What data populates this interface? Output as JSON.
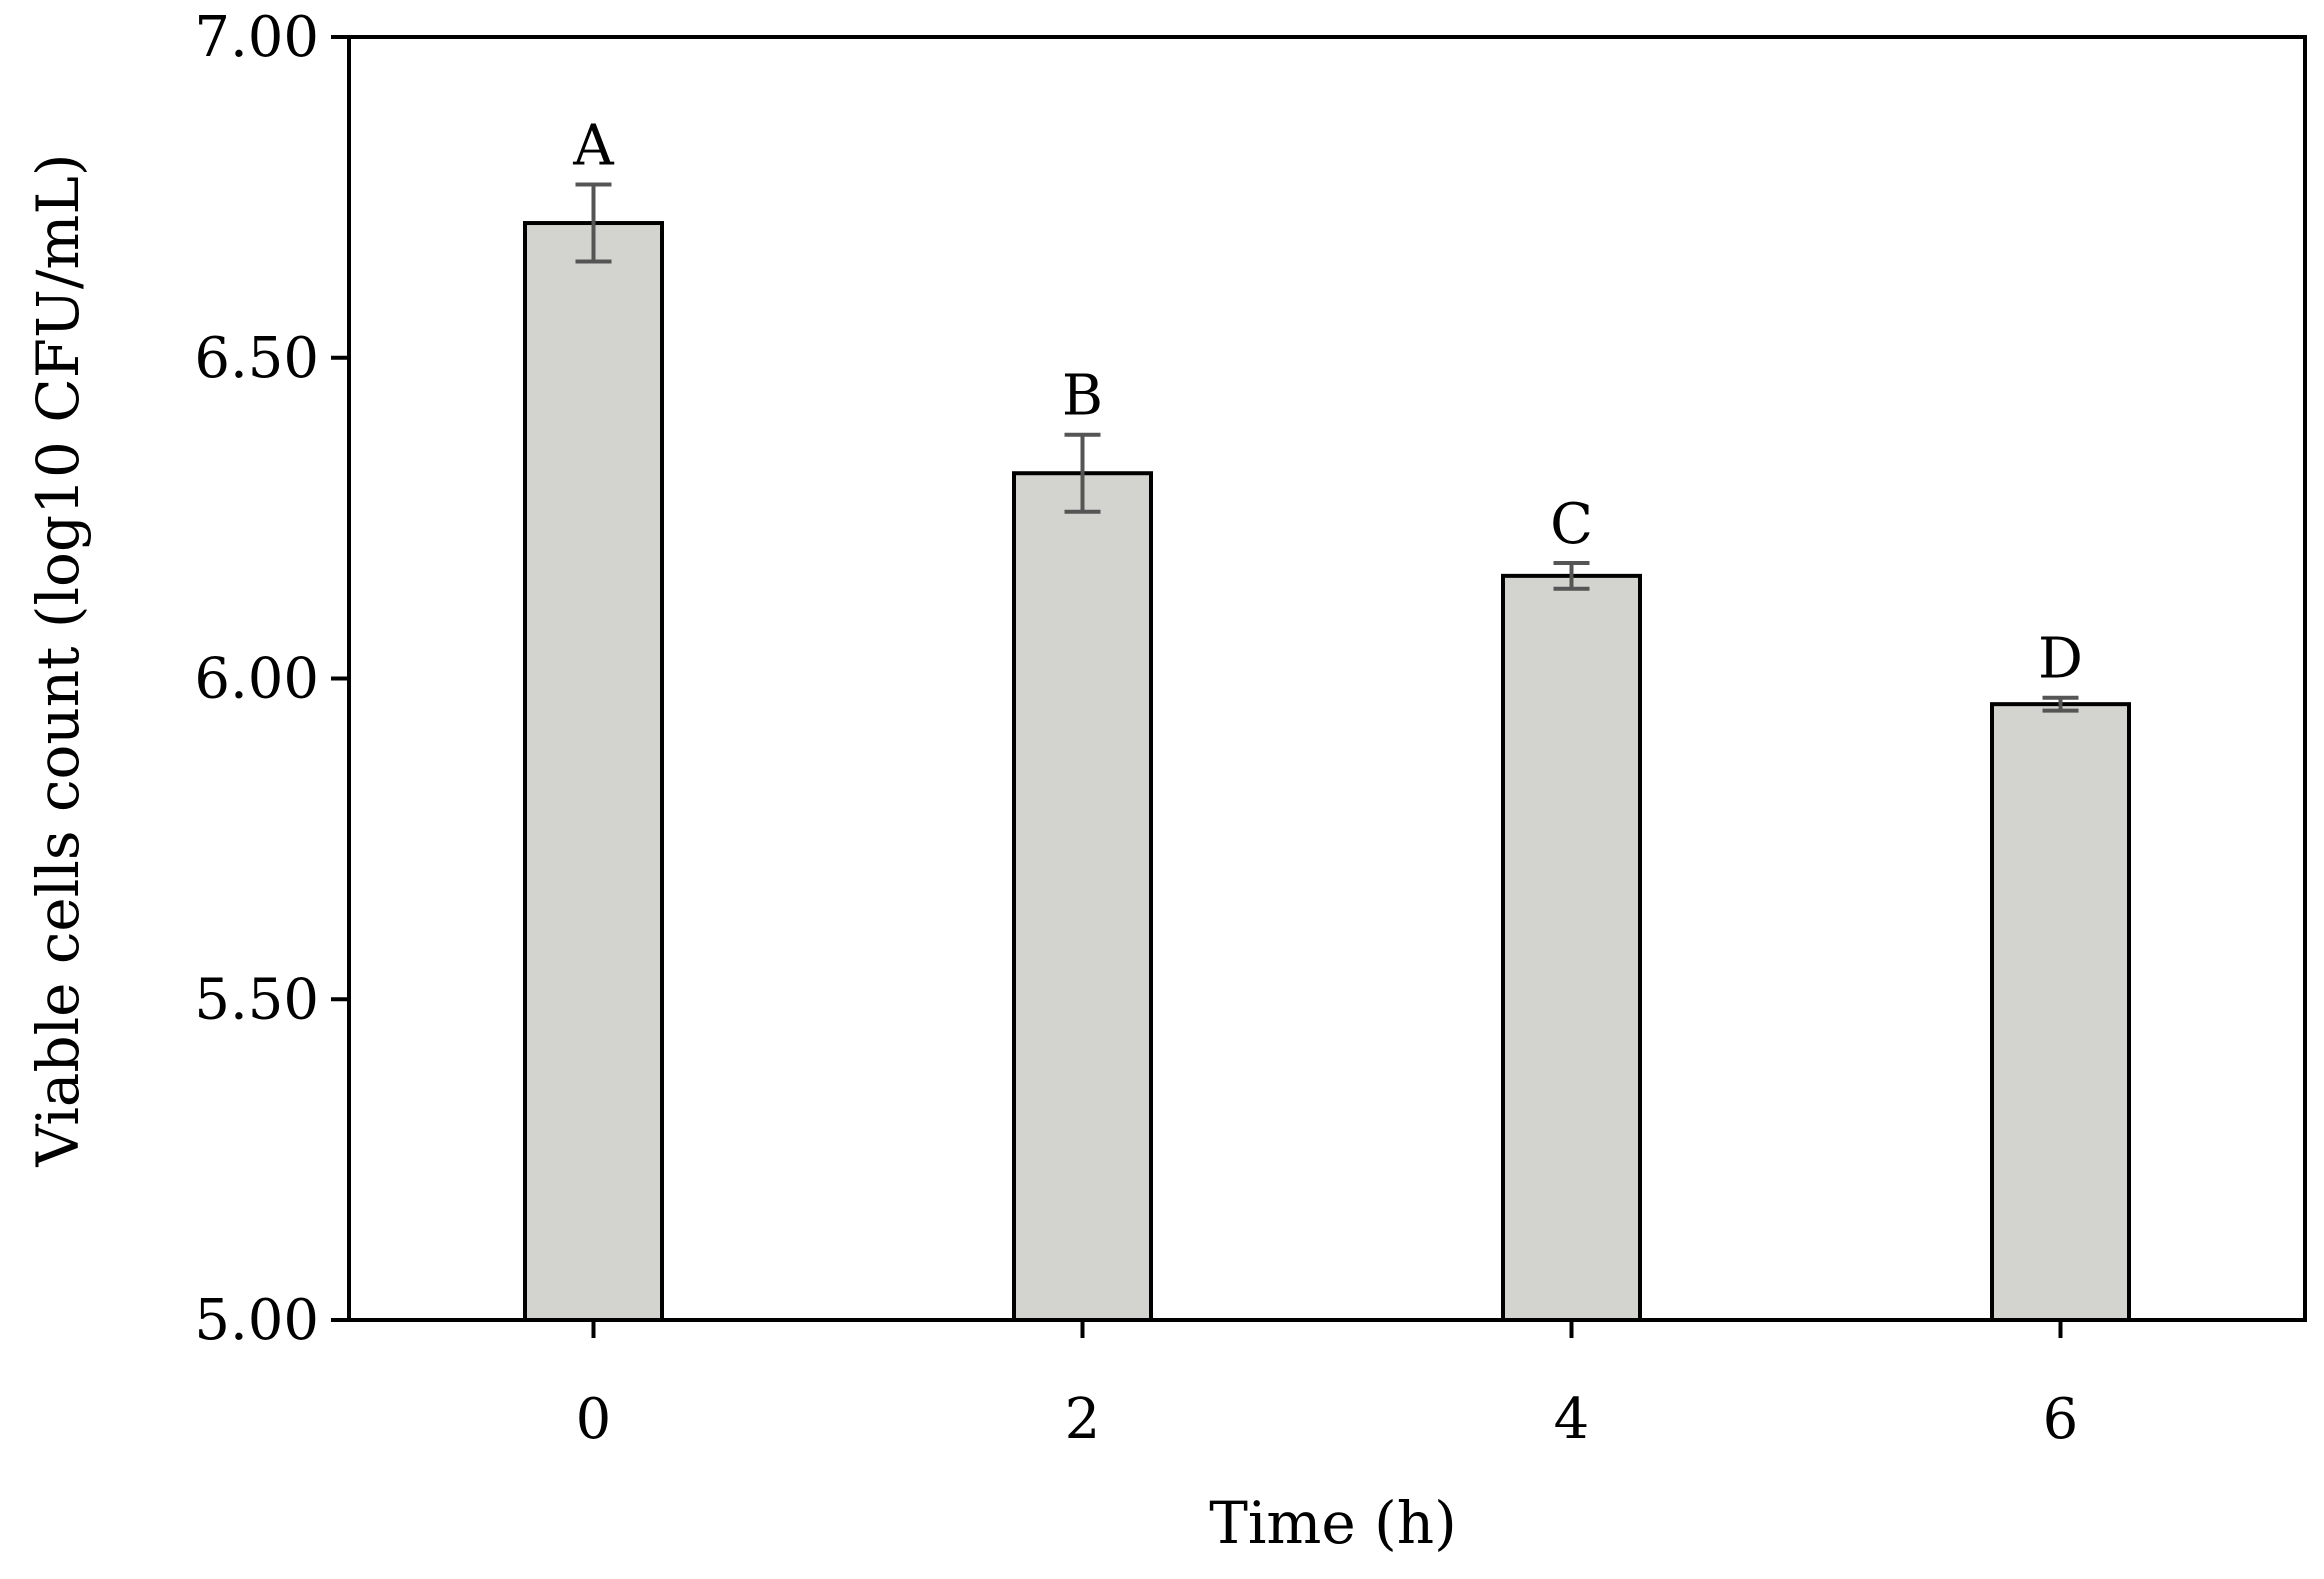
{
  "chart_data": {
    "type": "bar",
    "title": "",
    "xlabel": "Time (h)",
    "ylabel": "Viable cells count (log10 CFU/mL)",
    "categories": [
      "0",
      "2",
      "4",
      "6"
    ],
    "series": [
      {
        "values": [
          6.71,
          6.32,
          6.16,
          5.96
        ],
        "errors": [
          0.06,
          0.06,
          0.02,
          0.01
        ],
        "significance": [
          "A",
          "B",
          "C",
          "D"
        ]
      }
    ],
    "ylim": [
      5.0,
      7.0
    ],
    "yticks": [
      "5.00",
      "5.50",
      "6.00",
      "6.50",
      "7.00"
    ],
    "grid": false,
    "legend": "none",
    "colors": {
      "bar_fill": "#d3d3d0",
      "bar_stroke": "#000000",
      "error_bar": "#555555",
      "frame": "#000000"
    }
  }
}
